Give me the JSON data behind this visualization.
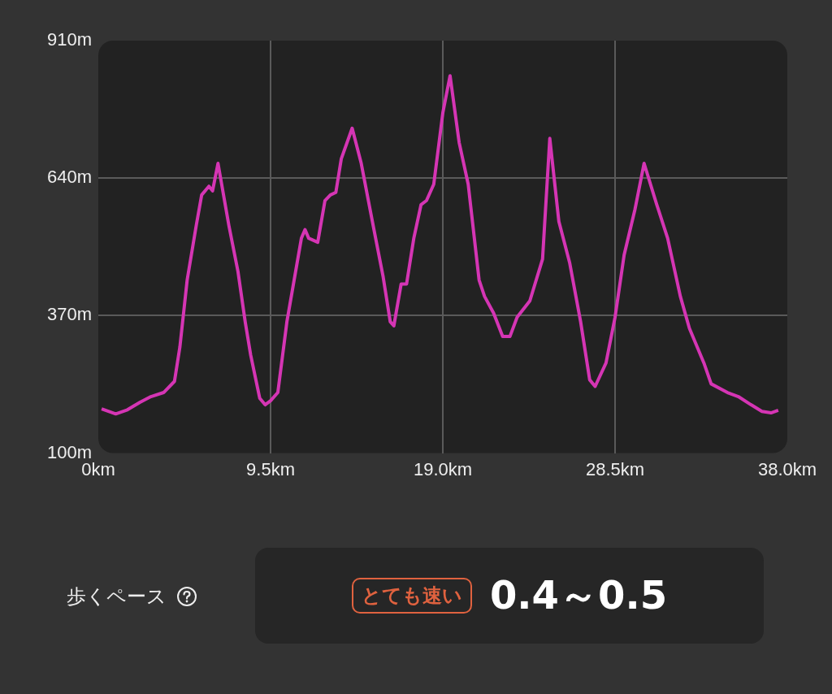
{
  "chart_data": {
    "type": "line",
    "x": [
      0.18,
      0.96,
      1.6,
      2.3,
      2.9,
      3.6,
      4.2,
      4.5,
      4.9,
      5.4,
      5.7,
      6.1,
      6.3,
      6.6,
      7.2,
      7.7,
      8.1,
      8.4,
      8.9,
      9.2,
      9.5,
      9.9,
      10.4,
      11.2,
      11.4,
      11.6,
      12.1,
      12.5,
      12.8,
      13.1,
      13.4,
      14.0,
      14.5,
      15.2,
      15.7,
      16.1,
      16.3,
      16.7,
      17.0,
      17.4,
      17.8,
      18.1,
      18.5,
      19.0,
      19.4,
      19.9,
      20.4,
      21.0,
      21.3,
      21.8,
      22.3,
      22.7,
      23.1,
      23.8,
      24.5,
      24.9,
      25.4,
      26.0,
      26.6,
      27.1,
      27.4,
      28.0,
      28.5,
      29.0,
      29.6,
      30.1,
      30.8,
      31.4,
      32.1,
      32.6,
      33.4,
      33.8,
      34.7,
      35.3,
      36.0,
      36.6,
      37.1,
      37.5
    ],
    "series": [
      {
        "color": "#d535b4",
        "values": [
          187,
          177,
          185,
          200,
          211,
          219,
          241,
          309,
          440,
          547,
          607,
          624,
          615,
          669,
          547,
          457,
          358,
          293,
          208,
          195,
          203,
          219,
          358,
          522,
          539,
          522,
          514,
          596,
          607,
          612,
          678,
          738,
          669,
          539,
          448,
          358,
          350,
          432,
          432,
          522,
          588,
          596,
          628,
          768,
          841,
          710,
          628,
          440,
          408,
          375,
          329,
          329,
          367,
          399,
          481,
          718,
          555,
          473,
          358,
          244,
          231,
          277,
          367,
          489,
          579,
          669,
          588,
          522,
          408,
          345,
          277,
          236,
          219,
          211,
          195,
          182,
          179,
          184
        ]
      }
    ],
    "xlim": [
      0,
      38
    ],
    "ylim": [
      100,
      910
    ],
    "xticks": [
      {
        "value": 0,
        "label": "0km"
      },
      {
        "value": 9.5,
        "label": "9.5km"
      },
      {
        "value": 19,
        "label": "19.0km"
      },
      {
        "value": 28.5,
        "label": "28.5km"
      },
      {
        "value": 38,
        "label": "38.0km"
      }
    ],
    "yticks": [
      {
        "value": 100,
        "label": "100m"
      },
      {
        "value": 370,
        "label": "370m"
      },
      {
        "value": 640,
        "label": "640m"
      },
      {
        "value": 910,
        "label": "910m"
      }
    ],
    "grid": true,
    "marker": "none",
    "line_style": "solid",
    "annotations": [
      "歩くペース",
      "とても速い",
      "0.4～0.5"
    ]
  }
}
